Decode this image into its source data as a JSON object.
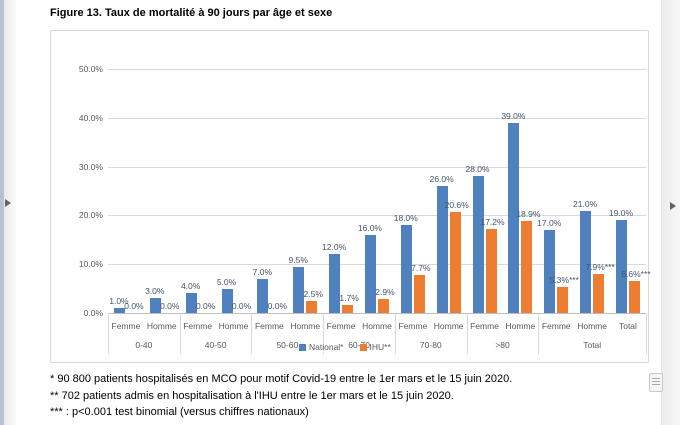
{
  "page": {
    "title": "Figure 13. Taux de mortalité à 90 jours par âge et sexe",
    "footnotes": [
      "* 90 800 patients hospitalisés en MCO pour motif Covid-19 entre le 1er mars et le 15 juin 2020.",
      "** 702 patients admis en hospitalisation à l'IHU entre le 1er mars et le 15 juin 2020.",
      "*** : p<0.001 test binomial (versus chiffres nationaux)"
    ]
  },
  "ui": {
    "icons": {
      "left_expand": "right-pointing-triangle",
      "right_expand": "right-pointing-triangle",
      "grip": "horizontal-lines-handle"
    }
  },
  "colors": {
    "national": "#4e81be",
    "ihu": "#ed7d31",
    "data_label": "#44546a",
    "axis_text": "#595959",
    "gridline": "#d9d9d9"
  },
  "chart_data": {
    "type": "bar",
    "title": "",
    "xlabel": "",
    "ylabel": "",
    "ylim": [
      0,
      50
    ],
    "yticks": [
      "0.0%",
      "10.0%",
      "20.0%",
      "30.0%",
      "40.0%",
      "50.0%"
    ],
    "grid": true,
    "legend_position": "bottom-center-overlapping-axis",
    "groups": [
      {
        "label": "0-40",
        "span": 2
      },
      {
        "label": "40-50",
        "span": 2
      },
      {
        "label": "50-60",
        "span": 2
      },
      {
        "label": "60-70",
        "span": 2
      },
      {
        "label": "70-80",
        "span": 2
      },
      {
        "label": ">80",
        "span": 2
      },
      {
        "label": "Total",
        "span": 3
      }
    ],
    "sub_labels": [
      "Femme",
      "Homme",
      "Femme",
      "Homme",
      "Femme",
      "Homme",
      "Femme",
      "Homme",
      "Femme",
      "Homme",
      "Femme",
      "Homme",
      "Femme",
      "Homme",
      "Total"
    ],
    "series": [
      {
        "name": "National*",
        "color": "#4e81be",
        "values": [
          1.0,
          3.0,
          4.0,
          5.0,
          7.0,
          9.5,
          12.0,
          16.0,
          18.0,
          26.0,
          28.0,
          39.0,
          17.0,
          21.0,
          19.0
        ],
        "labels": [
          "1.0%",
          "3.0%",
          "4.0%",
          "5.0%",
          "7.0%",
          "9.5%",
          "12.0%",
          "16.0%",
          "18.0%",
          "26.0%",
          "28.0%",
          "39.0%",
          "17.0%",
          "21.0%",
          "19.0%"
        ]
      },
      {
        "name": "IHU**",
        "color": "#ed7d31",
        "values": [
          0.0,
          0.0,
          0.0,
          0.0,
          0.0,
          2.5,
          1.7,
          2.9,
          7.7,
          20.6,
          17.2,
          18.9,
          5.3,
          7.9,
          6.6
        ],
        "labels": [
          "0.0%",
          "0.0%",
          "0.0%",
          "0.0%",
          "0.0%",
          "2.5%",
          "1.7%",
          "2.9%",
          "7.7%",
          "20.6%",
          "17.2%",
          "18.9%",
          "5.3%***",
          "7.9%***",
          "6.6%***"
        ]
      }
    ]
  }
}
